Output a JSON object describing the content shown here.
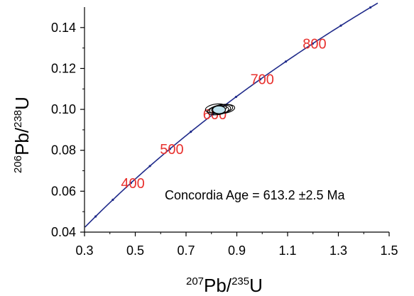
{
  "chart_data": {
    "type": "scatter",
    "title": "",
    "xlabel": {
      "pre_sup": "207",
      "main": "Pb/",
      "post_sup": "235",
      "tail": "U"
    },
    "ylabel": {
      "pre_sup": "206",
      "main": "Pb/",
      "post_sup": "238",
      "tail": "U"
    },
    "xlim": [
      0.3,
      1.5
    ],
    "ylim": [
      0.04,
      0.15
    ],
    "x_ticks": [
      "0.3",
      "0.5",
      "0.7",
      "0.9",
      "1.1",
      "1.3",
      "1.5"
    ],
    "y_ticks": [
      "0.04",
      "0.06",
      "0.08",
      "0.10",
      "0.12",
      "0.14"
    ],
    "grid": false,
    "concordia": {
      "color": "#1f2a8a",
      "age_labels": [
        "400",
        "500",
        "600",
        "700",
        "800"
      ],
      "age_label_color": "#e8312e"
    },
    "ellipses": [
      {
        "x": 0.818,
        "y": 0.1005
      },
      {
        "x": 0.826,
        "y": 0.0995
      },
      {
        "x": 0.834,
        "y": 0.1
      },
      {
        "x": 0.842,
        "y": 0.1003
      },
      {
        "x": 0.85,
        "y": 0.1002
      }
    ],
    "concordia_age": {
      "x": 0.83,
      "y": 0.0998,
      "color": "#bfe3ee"
    },
    "annotation": "Concordia Age = 613.2 ±2.5 Ma"
  }
}
